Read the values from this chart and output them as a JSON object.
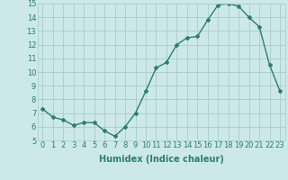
{
  "x": [
    0,
    1,
    2,
    3,
    4,
    5,
    6,
    7,
    8,
    9,
    10,
    11,
    12,
    13,
    14,
    15,
    16,
    17,
    18,
    19,
    20,
    21,
    22,
    23
  ],
  "y": [
    7.3,
    6.7,
    6.5,
    6.1,
    6.3,
    6.3,
    5.7,
    5.3,
    6.0,
    7.0,
    8.6,
    10.3,
    10.7,
    12.0,
    12.5,
    12.6,
    13.8,
    14.9,
    15.0,
    14.8,
    14.0,
    13.3,
    10.5,
    8.6
  ],
  "line_color": "#2e7d6e",
  "marker": "D",
  "marker_size": 2,
  "line_width": 1.0,
  "xlabel": "Humidex (Indice chaleur)",
  "xlim": [
    -0.5,
    23.5
  ],
  "ylim": [
    5,
    15
  ],
  "yticks": [
    5,
    6,
    7,
    8,
    9,
    10,
    11,
    12,
    13,
    14,
    15
  ],
  "xticks": [
    0,
    1,
    2,
    3,
    4,
    5,
    6,
    7,
    8,
    9,
    10,
    11,
    12,
    13,
    14,
    15,
    16,
    17,
    18,
    19,
    20,
    21,
    22,
    23
  ],
  "bg_color": "#cce8e8",
  "grid_color": "#aacccc",
  "xlabel_fontsize": 7,
  "tick_fontsize": 6
}
